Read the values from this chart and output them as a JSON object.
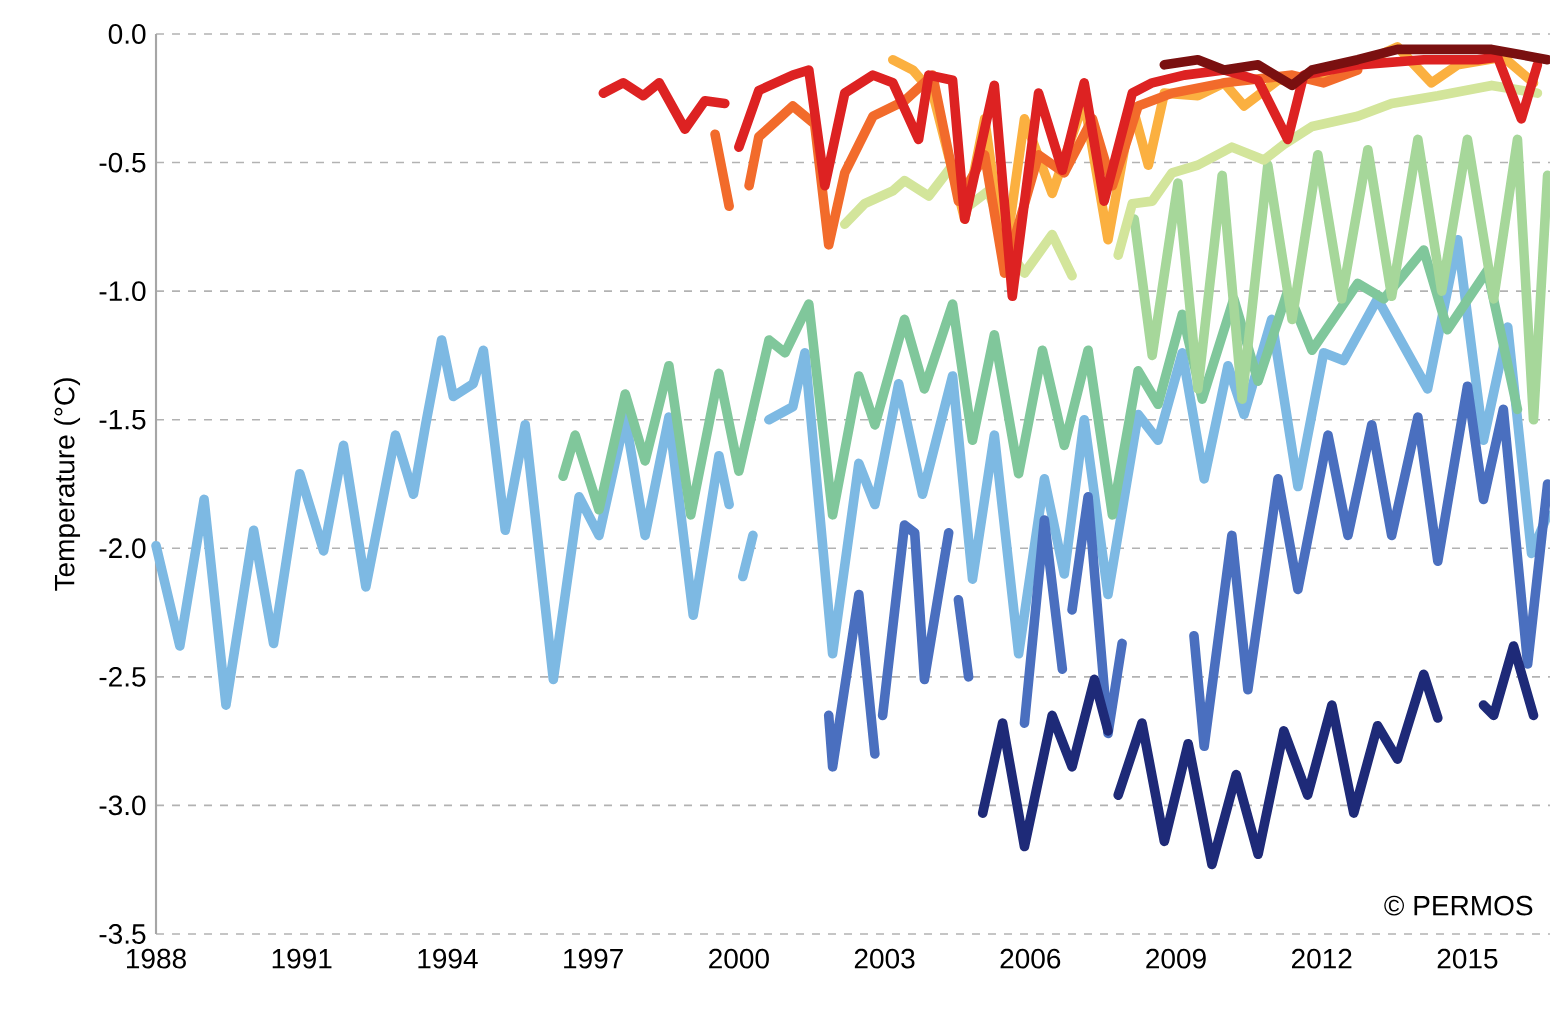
{
  "chart_data": {
    "type": "line",
    "ylabel": "Temperature (°C)",
    "annotations": [
      "© PERMOS"
    ],
    "xlim": [
      1988,
      2016.7
    ],
    "xticks": [
      1988,
      1991,
      1994,
      1997,
      2000,
      2003,
      2006,
      2009,
      2012,
      2015
    ],
    "ylim": [
      -3.5,
      0
    ],
    "yticks": [
      {
        "value": -3.5,
        "label": "-3.5"
      },
      {
        "value": -3,
        "label": "-3.0"
      },
      {
        "value": -2.5,
        "label": "-2.5"
      },
      {
        "value": -2,
        "label": "-2.0"
      },
      {
        "value": -1.5,
        "label": "-1.5"
      },
      {
        "value": -1,
        "label": "-1.0"
      },
      {
        "value": -0.5,
        "label": "-0.5"
      },
      {
        "value": 0,
        "label": "0.0"
      }
    ],
    "grid": "y",
    "marker": "none",
    "line_style": "solid",
    "series": [
      {
        "color": "#7db9e3",
        "x": [
          1988.0,
          1988.49,
          1988.99,
          1989.44,
          1990.01,
          1990.42,
          1990.96,
          1991.45,
          1991.86,
          1992.32,
          1992.93,
          1993.3,
          1993.55,
          1993.88,
          1994.12,
          1994.53,
          1994.74,
          1995.19,
          1995.6,
          1996.18,
          1996.71,
          1997.12,
          1997.66,
          1998.07,
          1998.56,
          1999.06,
          1999.59,
          1999.8,
          1999.9,
          2000.08,
          2000.29,
          2000.45,
          2000.62,
          2001.11,
          2001.36,
          2001.93,
          2002.47,
          2002.8,
          2003.29,
          2003.78,
          2004.4,
          2004.81,
          2005.26,
          2005.76,
          2006.29,
          2006.7,
          2007.11,
          2007.6,
          2008.22,
          2008.63,
          2009.13,
          2009.58,
          2010.07,
          2010.4,
          2010.97,
          2011.51,
          2012.04,
          2012.45,
          2013.15,
          2014.18,
          2014.8,
          2015.33,
          2015.83,
          2016.32,
          2016.65
        ],
        "values": [
          -1.99,
          -2.38,
          -1.81,
          -2.61,
          -1.93,
          -2.37,
          -1.71,
          -2.01,
          -1.6,
          -2.15,
          -1.56,
          -1.79,
          -1.52,
          -1.19,
          -1.41,
          -1.36,
          -1.23,
          -1.93,
          -1.52,
          -2.51,
          -1.8,
          -1.95,
          -1.49,
          -1.95,
          -1.49,
          -2.26,
          -1.64,
          -1.83,
          null,
          -2.11,
          -1.95,
          null,
          -1.5,
          -1.45,
          -1.24,
          -2.41,
          -1.67,
          -1.83,
          -1.36,
          -1.79,
          -1.33,
          -2.12,
          -1.56,
          -2.41,
          -1.73,
          -2.1,
          -1.5,
          -2.18,
          -1.48,
          -1.58,
          -1.24,
          -1.73,
          -1.29,
          -1.48,
          -1.11,
          -1.76,
          -1.24,
          -1.27,
          -1.03,
          -1.38,
          -0.8,
          -1.58,
          -1.14,
          -2.02,
          -1.87
        ]
      },
      {
        "color": "#80c79b",
        "x": [
          1996.38,
          1996.63,
          1997.12,
          1997.66,
          1998.07,
          1998.56,
          1999.01,
          1999.59,
          2000.0,
          2000.62,
          2000.95,
          2001.44,
          2001.93,
          2002.47,
          2002.8,
          2003.41,
          2003.82,
          2004.4,
          2004.81,
          2005.26,
          2005.76,
          2006.25,
          2006.7,
          2007.19,
          2007.69,
          2008.22,
          2008.63,
          2009.13,
          2009.54,
          2010.19,
          2010.69,
          2011.3,
          2011.8,
          2012.74,
          2013.28,
          2014.1,
          2014.59,
          2015.41,
          2016.03
        ],
        "values": [
          -1.72,
          -1.56,
          -1.85,
          -1.4,
          -1.66,
          -1.29,
          -1.87,
          -1.32,
          -1.7,
          -1.19,
          -1.24,
          -1.05,
          -1.87,
          -1.33,
          -1.52,
          -1.11,
          -1.38,
          -1.05,
          -1.58,
          -1.17,
          -1.71,
          -1.23,
          -1.6,
          -1.23,
          -1.87,
          -1.31,
          -1.44,
          -1.09,
          -1.42,
          -1.03,
          -1.35,
          -1.0,
          -1.23,
          -0.97,
          -1.03,
          -0.84,
          -1.15,
          -0.92,
          -1.46
        ]
      },
      {
        "color": "#a6d79a",
        "x": [
          2008.14,
          2008.51,
          2009.04,
          2009.45,
          2009.95,
          2010.36,
          2010.89,
          2011.39,
          2011.92,
          2012.41,
          2012.95,
          2013.44,
          2013.98,
          2014.47,
          2015.0,
          2015.54,
          2016.03,
          2016.36,
          2016.65
        ],
        "values": [
          -0.72,
          -1.25,
          -0.58,
          -1.38,
          -0.55,
          -1.42,
          -0.51,
          -1.11,
          -0.47,
          -1.03,
          -0.45,
          -1.02,
          -0.41,
          -1.0,
          -0.41,
          -1.03,
          -0.41,
          -1.5,
          -0.55
        ]
      },
      {
        "color": "#d3e59b",
        "x": [
          2002.18,
          2002.59,
          2003.17,
          2003.41,
          2003.91,
          2004.4,
          2004.65,
          2005.14,
          2005.55,
          2005.88,
          2006.45,
          2006.86,
          2007.3,
          2007.81,
          2008.1,
          2008.51,
          2008.92,
          2009.45,
          2010.15,
          2010.81,
          2011.22,
          2011.8,
          2012.74,
          2013.44,
          2014.39,
          2015.5,
          2016.44
        ],
        "values": [
          -0.74,
          -0.66,
          -0.61,
          -0.57,
          -0.63,
          -0.51,
          -0.68,
          -0.61,
          -0.84,
          -0.93,
          -0.78,
          -0.94,
          null,
          -0.86,
          -0.66,
          -0.65,
          -0.54,
          -0.51,
          -0.44,
          -0.49,
          -0.43,
          -0.36,
          -0.32,
          -0.27,
          -0.24,
          -0.2,
          -0.23
        ]
      },
      {
        "color": "#fbb040",
        "x": [
          2003.17,
          2003.58,
          2003.99,
          2004.65,
          2005.06,
          2005.47,
          2005.88,
          2006.45,
          2007.11,
          2007.6,
          2008.1,
          2008.43,
          2008.76,
          2009.45,
          2009.99,
          2010.4,
          2011.1,
          2012.04,
          2012.74,
          2013.56,
          2014.26,
          2014.8,
          2015.74,
          2016.36
        ],
        "values": [
          -0.1,
          -0.14,
          -0.23,
          -0.72,
          -0.33,
          -0.88,
          -0.33,
          -0.62,
          -0.26,
          -0.8,
          -0.28,
          -0.51,
          -0.23,
          -0.24,
          -0.19,
          -0.28,
          -0.18,
          -0.16,
          -0.12,
          -0.05,
          -0.19,
          -0.12,
          -0.09,
          -0.19
        ]
      },
      {
        "color": "#f26b2b",
        "x": [
          1999.51,
          1999.8,
          2000.0,
          2000.21,
          2000.41,
          2000.82,
          2001.11,
          2001.56,
          2001.85,
          2002.18,
          2002.76,
          2003.41,
          2003.99,
          2004.52,
          2005.06,
          2005.47,
          2006.17,
          2006.7,
          2007.28,
          2007.69,
          2008.22,
          2008.92,
          2009.99,
          2011.39,
          2012.04,
          2012.74
        ],
        "values": [
          -0.39,
          -0.67,
          null,
          -0.59,
          -0.4,
          -0.33,
          -0.28,
          -0.35,
          -0.82,
          -0.54,
          -0.32,
          -0.26,
          -0.16,
          -0.65,
          -0.47,
          -0.93,
          -0.47,
          -0.54,
          -0.33,
          -0.59,
          -0.28,
          -0.23,
          -0.19,
          -0.16,
          -0.19,
          -0.14
        ]
      },
      {
        "color": "#dd2222",
        "x": [
          1997.21,
          1997.62,
          1998.03,
          1998.36,
          1998.89,
          1999.3,
          1999.71,
          1999.85,
          2000.0,
          2000.41,
          2001.11,
          2001.44,
          2001.77,
          2002.18,
          2002.76,
          2003.17,
          2003.7,
          2003.91,
          2004.4,
          2004.65,
          2005.26,
          2005.63,
          2006.17,
          2006.66,
          2007.11,
          2007.52,
          2008.1,
          2008.51,
          2009.17,
          2009.99,
          2010.69,
          2011.3,
          2011.63,
          2012.74,
          2014.1,
          2015.21,
          2015.62,
          2016.11,
          2016.44
        ],
        "values": [
          -0.23,
          -0.19,
          -0.24,
          -0.19,
          -0.37,
          -0.26,
          -0.27,
          null,
          -0.44,
          -0.22,
          -0.16,
          -0.14,
          -0.59,
          -0.23,
          -0.16,
          -0.19,
          -0.41,
          -0.16,
          -0.18,
          -0.72,
          -0.2,
          -1.02,
          -0.23,
          -0.53,
          -0.19,
          -0.65,
          -0.23,
          -0.19,
          -0.16,
          -0.14,
          -0.18,
          -0.41,
          -0.16,
          -0.12,
          -0.1,
          -0.1,
          -0.09,
          -0.33,
          -0.12
        ]
      },
      {
        "color": "#7a1010",
        "x": [
          2008.76,
          2009.45,
          2009.99,
          2010.69,
          2011.39,
          2011.8,
          2012.74,
          2013.56,
          2014.51,
          2015.5,
          2016.65
        ],
        "values": [
          -0.12,
          -0.1,
          -0.14,
          -0.12,
          -0.2,
          -0.14,
          -0.1,
          -0.06,
          -0.06,
          -0.06,
          -0.1
        ]
      },
      {
        "color": "#4a6fbf",
        "x": [
          2001.85,
          2001.93,
          2002.47,
          2002.8,
          2002.88,
          2002.96,
          2003.41,
          2003.62,
          2003.82,
          2004.32,
          2004.42,
          2004.52,
          2004.73,
          2005.3,
          2005.88,
          2006.29,
          2006.66,
          2006.76,
          2006.86,
          2007.19,
          2007.6,
          2007.89,
          2008.6,
          2009.37,
          2009.58,
          2010.15,
          2010.48,
          2011.1,
          2011.51,
          2012.13,
          2012.54,
          2013.03,
          2013.44,
          2013.98,
          2014.39,
          2015.0,
          2015.33,
          2015.74,
          2016.24,
          2016.65
        ],
        "values": [
          -2.65,
          -2.85,
          -2.18,
          -2.8,
          null,
          -2.65,
          -1.91,
          -1.94,
          -2.51,
          -1.94,
          null,
          -2.2,
          -2.5,
          null,
          -2.68,
          -1.89,
          -2.47,
          null,
          -2.24,
          -1.8,
          -2.72,
          -2.37,
          null,
          -2.34,
          -2.77,
          -1.95,
          -2.55,
          -1.73,
          -2.16,
          -1.56,
          -1.95,
          -1.52,
          -1.95,
          -1.49,
          -2.05,
          -1.37,
          -1.81,
          -1.46,
          -2.45,
          -1.75
        ]
      },
      {
        "color": "#1e2a78",
        "x": [
          2005.02,
          2005.43,
          2005.88,
          2006.45,
          2006.86,
          2007.32,
          2007.6,
          2007.7,
          2007.81,
          2008.3,
          2008.76,
          2009.25,
          2009.74,
          2010.24,
          2010.69,
          2011.22,
          2011.71,
          2012.21,
          2012.66,
          2013.15,
          2013.56,
          2014.1,
          2014.39,
          2014.9,
          2015.33,
          2015.54,
          2015.95,
          2016.36
        ],
        "values": [
          -3.03,
          -2.68,
          -3.16,
          -2.65,
          -2.85,
          -2.51,
          -2.71,
          null,
          -2.96,
          -2.68,
          -3.14,
          -2.76,
          -3.23,
          -2.88,
          -3.19,
          -2.71,
          -2.96,
          -2.61,
          -3.03,
          -2.69,
          -2.82,
          -2.49,
          -2.66,
          null,
          -2.61,
          -2.65,
          -2.38,
          -2.65
        ]
      }
    ]
  }
}
